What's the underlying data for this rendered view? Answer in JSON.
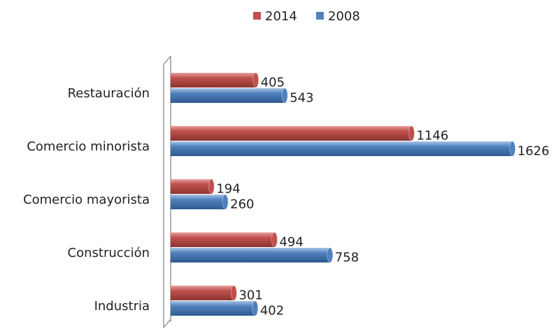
{
  "chart_data": {
    "type": "bar",
    "orientation": "horizontal",
    "categories": [
      "Restauración",
      "Comercio minorista",
      "Comercio mayorista",
      "Construcción",
      "Industria"
    ],
    "series": [
      {
        "name": "2014",
        "color": "#c0504d",
        "values": [
          405,
          1146,
          194,
          494,
          301
        ]
      },
      {
        "name": "2008",
        "color": "#4f81bd",
        "values": [
          543,
          1626,
          260,
          758,
          402
        ]
      }
    ],
    "xlim": [
      0,
      1700
    ],
    "legend": "top"
  }
}
